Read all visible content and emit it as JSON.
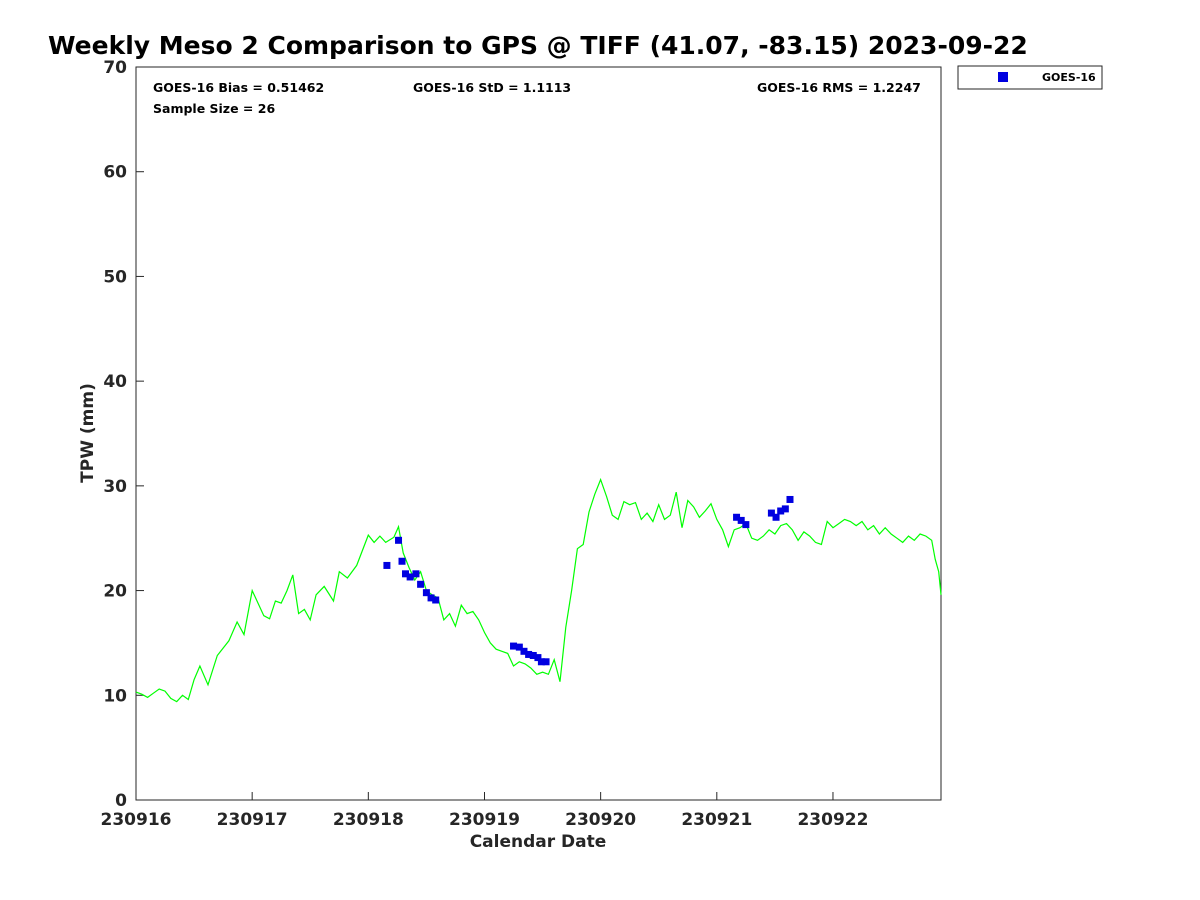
{
  "chart_data": {
    "type": "line",
    "title": "Weekly Meso 2 Comparison to GPS @ TIFF (41.07, -83.15) 2023-09-22",
    "xlabel": "Calendar Date",
    "ylabel": "TPW (mm)",
    "xlim": [
      230916,
      230922.93
    ],
    "ylim": [
      0,
      70
    ],
    "x_ticks": [
      {
        "value": 230916,
        "label": "230916"
      },
      {
        "value": 230917,
        "label": "230917"
      },
      {
        "value": 230918,
        "label": "230918"
      },
      {
        "value": 230919,
        "label": "230919"
      },
      {
        "value": 230920,
        "label": "230920"
      },
      {
        "value": 230921,
        "label": "230921"
      },
      {
        "value": 230922,
        "label": "230922"
      }
    ],
    "y_ticks": [
      {
        "value": 0,
        "label": "0"
      },
      {
        "value": 10,
        "label": "10"
      },
      {
        "value": 20,
        "label": "20"
      },
      {
        "value": 30,
        "label": "30"
      },
      {
        "value": 40,
        "label": "40"
      },
      {
        "value": 50,
        "label": "50"
      },
      {
        "value": 60,
        "label": "60"
      },
      {
        "value": 70,
        "label": "70"
      }
    ],
    "grid": false,
    "legend_position": "outside-top-right",
    "stats": {
      "bias": "GOES-16 Bias = 0.51462",
      "std": "GOES-16 StD = 1.1113",
      "rms": "GOES-16 RMS = 1.2247",
      "sample": "Sample Size = 26"
    },
    "series": [
      {
        "name": "",
        "kind": "line",
        "color": "#00ff00",
        "points": [
          [
            230916.0,
            10.3
          ],
          [
            230916.05,
            10.1
          ],
          [
            230916.1,
            9.8
          ],
          [
            230916.15,
            10.2
          ],
          [
            230916.2,
            10.6
          ],
          [
            230916.25,
            10.4
          ],
          [
            230916.3,
            9.7
          ],
          [
            230916.35,
            9.4
          ],
          [
            230916.4,
            10.0
          ],
          [
            230916.45,
            9.6
          ],
          [
            230916.5,
            11.5
          ],
          [
            230916.55,
            12.8
          ],
          [
            230916.62,
            11.0
          ],
          [
            230916.7,
            13.8
          ],
          [
            230916.8,
            15.2
          ],
          [
            230916.87,
            17.0
          ],
          [
            230916.93,
            15.8
          ],
          [
            230917.0,
            20.0
          ],
          [
            230917.05,
            18.8
          ],
          [
            230917.1,
            17.6
          ],
          [
            230917.15,
            17.3
          ],
          [
            230917.2,
            19.0
          ],
          [
            230917.25,
            18.8
          ],
          [
            230917.3,
            20.0
          ],
          [
            230917.35,
            21.5
          ],
          [
            230917.4,
            17.8
          ],
          [
            230917.45,
            18.2
          ],
          [
            230917.5,
            17.2
          ],
          [
            230917.55,
            19.6
          ],
          [
            230917.62,
            20.4
          ],
          [
            230917.7,
            19.0
          ],
          [
            230917.75,
            21.8
          ],
          [
            230917.82,
            21.2
          ],
          [
            230917.9,
            22.4
          ],
          [
            230918.0,
            25.3
          ],
          [
            230918.05,
            24.6
          ],
          [
            230918.1,
            25.2
          ],
          [
            230918.15,
            24.6
          ],
          [
            230918.22,
            25.1
          ],
          [
            230918.26,
            26.1
          ],
          [
            230918.3,
            23.6
          ],
          [
            230918.35,
            22.2
          ],
          [
            230918.4,
            21.0
          ],
          [
            230918.45,
            21.8
          ],
          [
            230918.5,
            20.0
          ],
          [
            230918.55,
            19.6
          ],
          [
            230918.6,
            19.3
          ],
          [
            230918.65,
            17.2
          ],
          [
            230918.7,
            17.8
          ],
          [
            230918.75,
            16.6
          ],
          [
            230918.8,
            18.6
          ],
          [
            230918.85,
            17.8
          ],
          [
            230918.9,
            18.0
          ],
          [
            230918.95,
            17.2
          ],
          [
            230919.0,
            16.0
          ],
          [
            230919.05,
            15.0
          ],
          [
            230919.1,
            14.4
          ],
          [
            230919.15,
            14.2
          ],
          [
            230919.2,
            14.0
          ],
          [
            230919.25,
            12.8
          ],
          [
            230919.3,
            13.2
          ],
          [
            230919.35,
            13.0
          ],
          [
            230919.4,
            12.6
          ],
          [
            230919.45,
            12.0
          ],
          [
            230919.5,
            12.2
          ],
          [
            230919.55,
            12.0
          ],
          [
            230919.6,
            13.4
          ],
          [
            230919.65,
            11.3
          ],
          [
            230919.7,
            16.5
          ],
          [
            230919.75,
            20.0
          ],
          [
            230919.8,
            24.0
          ],
          [
            230919.85,
            24.4
          ],
          [
            230919.9,
            27.5
          ],
          [
            230919.95,
            29.2
          ],
          [
            230920.0,
            30.6
          ],
          [
            230920.05,
            29.0
          ],
          [
            230920.1,
            27.2
          ],
          [
            230920.15,
            26.8
          ],
          [
            230920.2,
            28.5
          ],
          [
            230920.25,
            28.2
          ],
          [
            230920.3,
            28.4
          ],
          [
            230920.35,
            26.8
          ],
          [
            230920.4,
            27.4
          ],
          [
            230920.45,
            26.6
          ],
          [
            230920.5,
            28.2
          ],
          [
            230920.55,
            26.8
          ],
          [
            230920.6,
            27.2
          ],
          [
            230920.65,
            29.4
          ],
          [
            230920.7,
            26.0
          ],
          [
            230920.75,
            28.6
          ],
          [
            230920.8,
            28.0
          ],
          [
            230920.85,
            27.0
          ],
          [
            230920.9,
            27.6
          ],
          [
            230920.95,
            28.3
          ],
          [
            230921.0,
            26.8
          ],
          [
            230921.05,
            25.8
          ],
          [
            230921.1,
            24.2
          ],
          [
            230921.15,
            25.8
          ],
          [
            230921.2,
            26.0
          ],
          [
            230921.25,
            26.4
          ],
          [
            230921.3,
            25.0
          ],
          [
            230921.35,
            24.8
          ],
          [
            230921.4,
            25.2
          ],
          [
            230921.45,
            25.8
          ],
          [
            230921.5,
            25.4
          ],
          [
            230921.55,
            26.2
          ],
          [
            230921.6,
            26.4
          ],
          [
            230921.65,
            25.8
          ],
          [
            230921.7,
            24.8
          ],
          [
            230921.75,
            25.6
          ],
          [
            230921.8,
            25.2
          ],
          [
            230921.85,
            24.6
          ],
          [
            230921.9,
            24.4
          ],
          [
            230921.95,
            26.6
          ],
          [
            230922.0,
            26.0
          ],
          [
            230922.05,
            26.4
          ],
          [
            230922.1,
            26.8
          ],
          [
            230922.15,
            26.6
          ],
          [
            230922.2,
            26.2
          ],
          [
            230922.25,
            26.6
          ],
          [
            230922.3,
            25.8
          ],
          [
            230922.35,
            26.2
          ],
          [
            230922.4,
            25.4
          ],
          [
            230922.45,
            26.0
          ],
          [
            230922.5,
            25.4
          ],
          [
            230922.55,
            25.0
          ],
          [
            230922.6,
            24.6
          ],
          [
            230922.65,
            25.2
          ],
          [
            230922.7,
            24.8
          ],
          [
            230922.75,
            25.4
          ],
          [
            230922.8,
            25.2
          ],
          [
            230922.85,
            24.8
          ],
          [
            230922.88,
            23.0
          ],
          [
            230922.91,
            21.8
          ],
          [
            230922.93,
            19.6
          ]
        ]
      },
      {
        "name": "GOES-16",
        "kind": "scatter",
        "color": "#0000e0",
        "points": [
          [
            230918.16,
            22.4
          ],
          [
            230918.26,
            24.8
          ],
          [
            230918.29,
            22.8
          ],
          [
            230918.32,
            21.6
          ],
          [
            230918.36,
            21.3
          ],
          [
            230918.41,
            21.6
          ],
          [
            230918.45,
            20.6
          ],
          [
            230918.5,
            19.8
          ],
          [
            230918.54,
            19.3
          ],
          [
            230918.58,
            19.1
          ],
          [
            230919.25,
            14.7
          ],
          [
            230919.3,
            14.6
          ],
          [
            230919.34,
            14.2
          ],
          [
            230919.38,
            13.9
          ],
          [
            230919.42,
            13.8
          ],
          [
            230919.46,
            13.6
          ],
          [
            230919.49,
            13.2
          ],
          [
            230919.53,
            13.2
          ],
          [
            230921.17,
            27.0
          ],
          [
            230921.21,
            26.7
          ],
          [
            230921.25,
            26.3
          ],
          [
            230921.47,
            27.4
          ],
          [
            230921.51,
            27.0
          ],
          [
            230921.55,
            27.6
          ],
          [
            230921.59,
            27.8
          ],
          [
            230921.63,
            28.7
          ]
        ]
      }
    ]
  }
}
